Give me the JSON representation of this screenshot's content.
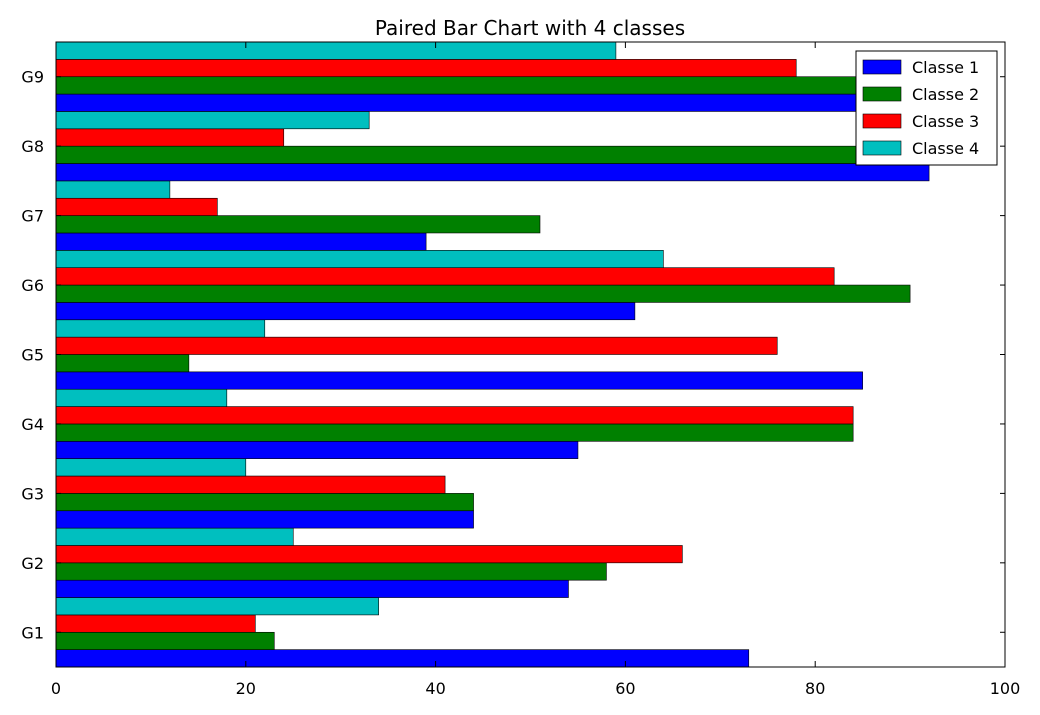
{
  "chart_data": {
    "type": "bar",
    "orientation": "horizontal",
    "title": "Paired Bar Chart with 4 classes",
    "xlabel": "",
    "ylabel": "",
    "xlim": [
      0,
      100
    ],
    "x_ticks": [
      0,
      20,
      40,
      60,
      80,
      100
    ],
    "categories": [
      "G1",
      "G2",
      "G3",
      "G4",
      "G5",
      "G6",
      "G7",
      "G8",
      "G9"
    ],
    "grid": false,
    "legend_position": "top-right",
    "series": [
      {
        "name": "Classe 1",
        "color": "#0000ff",
        "values": [
          73,
          54,
          44,
          55,
          85,
          61,
          39,
          92,
          93
        ]
      },
      {
        "name": "Classe 2",
        "color": "#008000",
        "values": [
          23,
          58,
          44,
          84,
          14,
          90,
          51,
          95,
          96
        ]
      },
      {
        "name": "Classe 3",
        "color": "#ff0000",
        "values": [
          21,
          66,
          41,
          84,
          76,
          82,
          17,
          24,
          78
        ]
      },
      {
        "name": "Classe 4",
        "color": "#00bfbf",
        "values": [
          34,
          25,
          20,
          18,
          22,
          64,
          12,
          33,
          59
        ]
      }
    ]
  }
}
